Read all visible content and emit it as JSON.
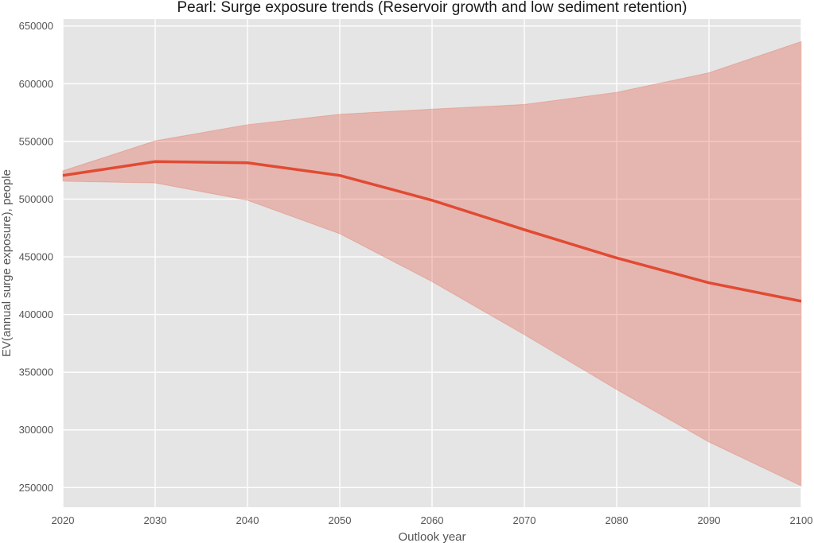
{
  "chart_data": {
    "type": "line",
    "title": "Pearl: Surge exposure trends (Reservoir growth and low sediment retention)",
    "xlabel": "Outlook year",
    "ylabel": "EV(annual surge exposure), people",
    "x": [
      2020,
      2030,
      2040,
      2050,
      2060,
      2070,
      2080,
      2090,
      2100
    ],
    "xlim": [
      2020,
      2100
    ],
    "ylim": [
      233000,
      656000
    ],
    "xticks": [
      2020,
      2030,
      2040,
      2050,
      2060,
      2070,
      2080,
      2090,
      2100
    ],
    "yticks": [
      250000,
      300000,
      350000,
      400000,
      450000,
      500000,
      550000,
      600000,
      650000
    ],
    "grid": true,
    "series": [
      {
        "name": "EV(annual surge exposure)",
        "values": [
          520500,
          532500,
          531500,
          520500,
          499000,
          473500,
          449000,
          427500,
          411500
        ],
        "color": "#e24a33"
      }
    ],
    "band": {
      "name": "range",
      "lower": [
        515500,
        514000,
        499000,
        470000,
        428500,
        382500,
        335000,
        289500,
        251500
      ],
      "upper": [
        524500,
        550500,
        564500,
        573500,
        578000,
        582000,
        592500,
        609500,
        636500
      ],
      "color": "#e24a33"
    },
    "plot_background": "#e5e5e5",
    "grid_color": "#ffffff"
  }
}
